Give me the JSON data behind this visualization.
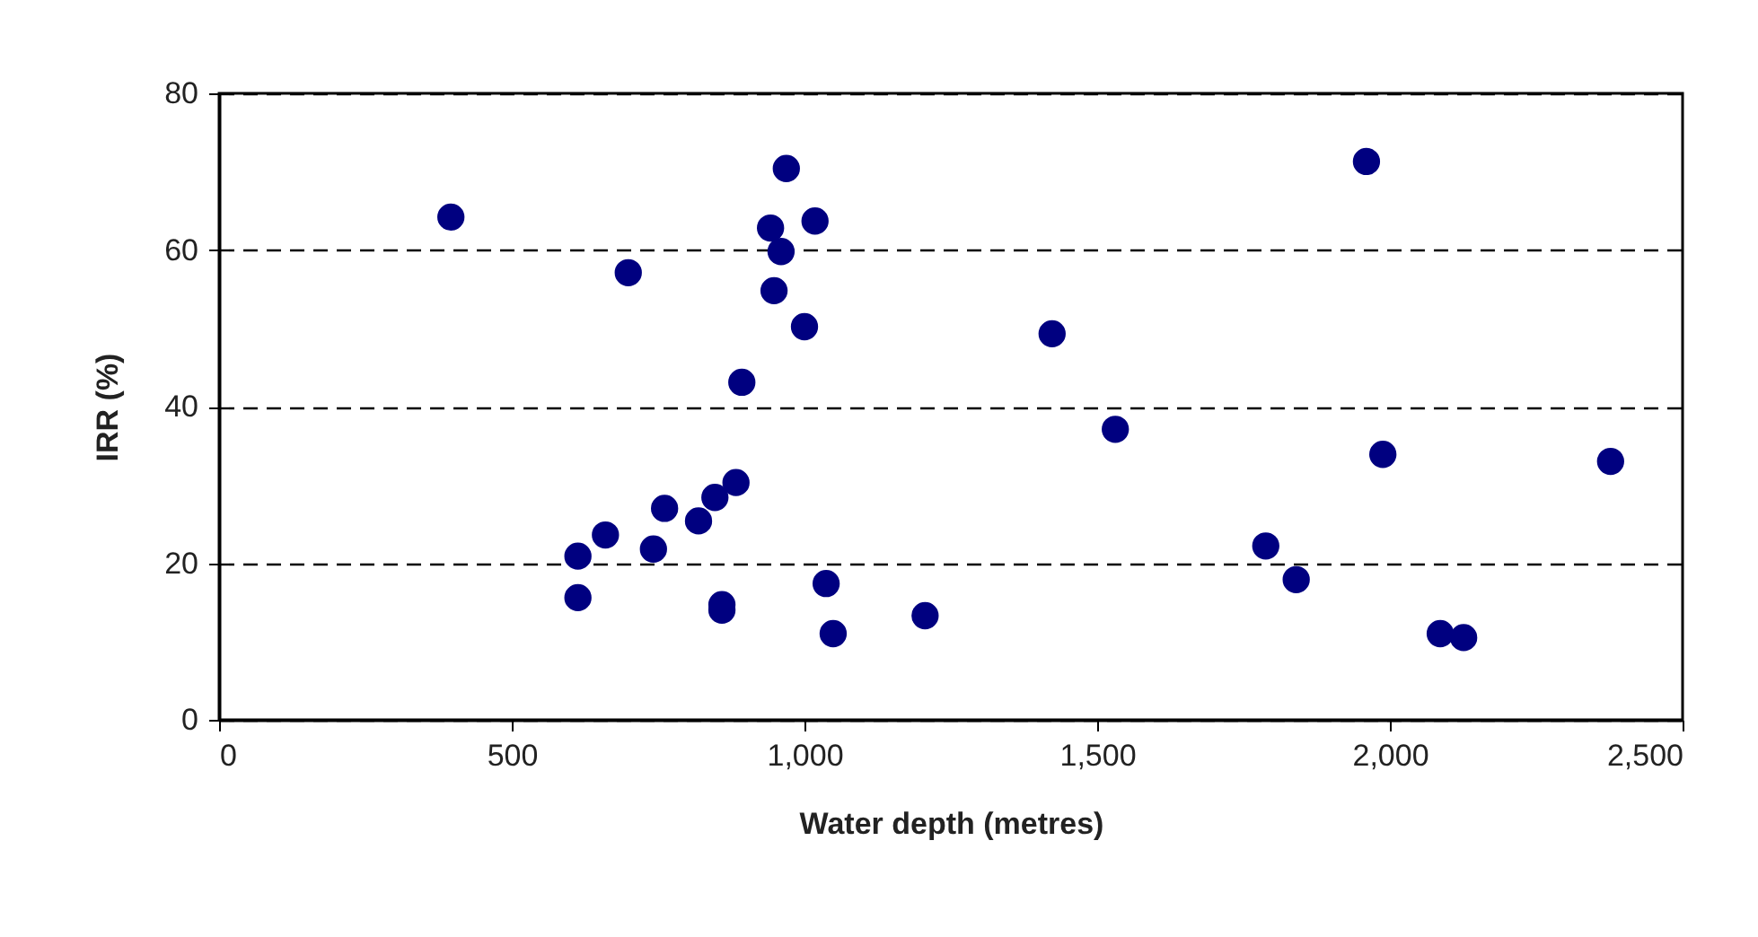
{
  "chart_data": {
    "type": "scatter",
    "xlabel": "Water depth (metres)",
    "ylabel": "IRR (%)",
    "marker": "circle",
    "grid": "y",
    "legend": false,
    "xlim": [
      0,
      2500
    ],
    "ylim": [
      0,
      80
    ],
    "xticks": [
      0,
      500,
      {
        "value": 1000,
        "label": "1,000"
      },
      {
        "value": 1500,
        "label": "1,500"
      },
      {
        "value": 2000,
        "label": "2,000"
      },
      {
        "value": 2500,
        "label": "2,500"
      }
    ],
    "yticks": [
      0,
      20,
      40,
      60,
      80
    ],
    "series": [
      {
        "color": "#000080",
        "x": [
          396,
          613,
          613,
          660,
          699,
          742,
          761,
          819,
          847,
          883,
          893,
          859,
          859,
          948,
          942,
          960,
          969,
          1000,
          1018,
          1037,
          1049,
          1206,
          1423,
          1531,
          1788,
          1840,
          1960,
          1988,
          2086,
          2126,
          2377
        ],
        "values": [
          64.2,
          20.9,
          15.6,
          23.6,
          57.1,
          21.8,
          27.0,
          25.4,
          28.4,
          30.3,
          43.1,
          14.7,
          14.0,
          54.8,
          62.8,
          59.8,
          70.4,
          50.2,
          63.7,
          17.4,
          11.0,
          13.3,
          49.3,
          37.1,
          22.2,
          17.9,
          71.3,
          33.9,
          11.0,
          10.5,
          33.0
        ]
      }
    ]
  }
}
